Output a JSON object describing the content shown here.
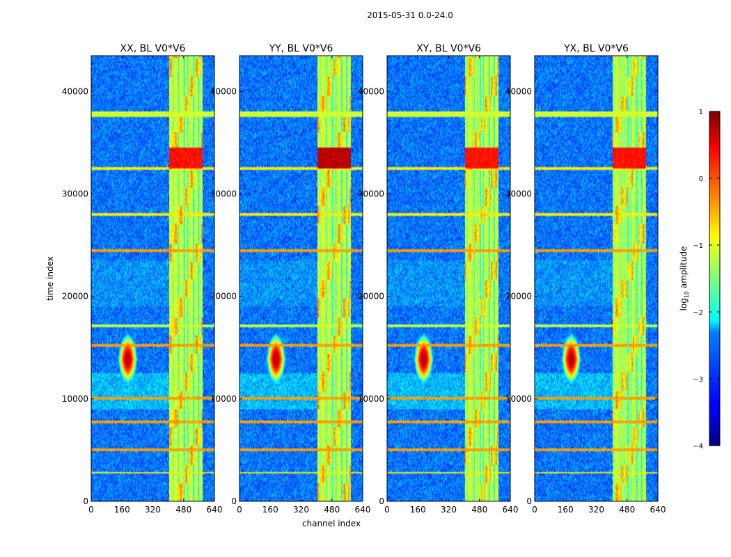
{
  "chart_data": {
    "type": "heatmap",
    "suptitle": "2015-05-31 0.0-24.0",
    "xlabel": "channel index",
    "ylabel": "time index",
    "colormap": "jet",
    "xlim": [
      0,
      640
    ],
    "ylim": [
      0,
      43500
    ],
    "xticks": [
      0,
      160,
      320,
      480,
      640
    ],
    "yticks": [
      0,
      10000,
      20000,
      30000,
      40000
    ],
    "colorbar": {
      "label": "log$_{10}$ amplitude",
      "label_text": "log",
      "label_sub": "10",
      "label_rest": " amplitude",
      "range": [
        -4,
        1
      ],
      "ticks": [
        1,
        0,
        -1,
        -2,
        -3,
        -4
      ],
      "tick_labels": [
        "1",
        "0",
        "−1",
        "−2",
        "−3",
        "−4"
      ]
    },
    "panels": [
      {
        "title": "XX, BL V0*V6",
        "pol": "XX"
      },
      {
        "title": "YY, BL V0*V6",
        "pol": "YY"
      },
      {
        "title": "XY, BL V0*V6",
        "pol": "XY"
      },
      {
        "title": "YX, BL V0*V6",
        "pol": "YX"
      }
    ],
    "features": {
      "background_level": -2.8,
      "rfi_channel_band": [
        405,
        580
      ],
      "rfi_band_level": -1.2,
      "point_source": {
        "channel": 190,
        "time": 13900,
        "level": 0.8
      },
      "hot_segment": {
        "time_range": [
          32500,
          34500
        ],
        "level": 0.3
      },
      "horizontal_flag_times": [
        37800,
        17100,
        15200,
        10100,
        7700,
        5000,
        2800,
        24500,
        28000,
        32500
      ]
    }
  }
}
